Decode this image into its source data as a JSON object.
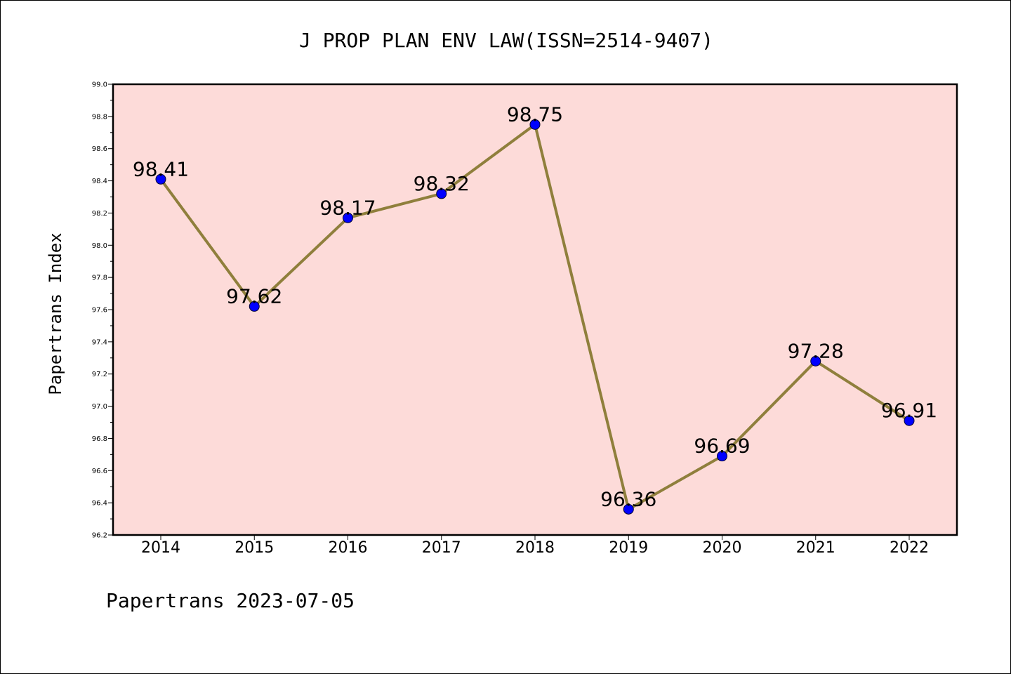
{
  "chart_data": {
    "type": "line",
    "title": "J PROP PLAN ENV LAW(ISSN=2514-9407)",
    "ylabel": "Papertrans Index",
    "xlabel": "",
    "categories": [
      "2014",
      "2015",
      "2016",
      "2017",
      "2018",
      "2019",
      "2020",
      "2021",
      "2022"
    ],
    "series": [
      {
        "values": [
          98.41,
          97.62,
          98.17,
          98.32,
          98.75,
          96.36,
          96.69,
          97.28,
          96.91
        ],
        "labels": [
          "98.41",
          "97.62",
          "98.17",
          "98.32",
          "98.75",
          "96.36",
          "96.69",
          "97.28",
          "96.91"
        ]
      }
    ],
    "ylim": [
      96.2,
      99.0
    ],
    "yticks": [
      "96.2",
      "96.4",
      "96.6",
      "96.8",
      "97.0",
      "97.2",
      "97.4",
      "97.6",
      "97.8",
      "98.0",
      "98.2",
      "98.4",
      "98.6",
      "98.8",
      "99.0"
    ],
    "grid": false,
    "legend": "none",
    "colors": {
      "plot_background": "#fddbd9",
      "line": "#8f7f3c",
      "marker": "#0000ff"
    },
    "footer": "Papertrans 2023-07-05"
  }
}
